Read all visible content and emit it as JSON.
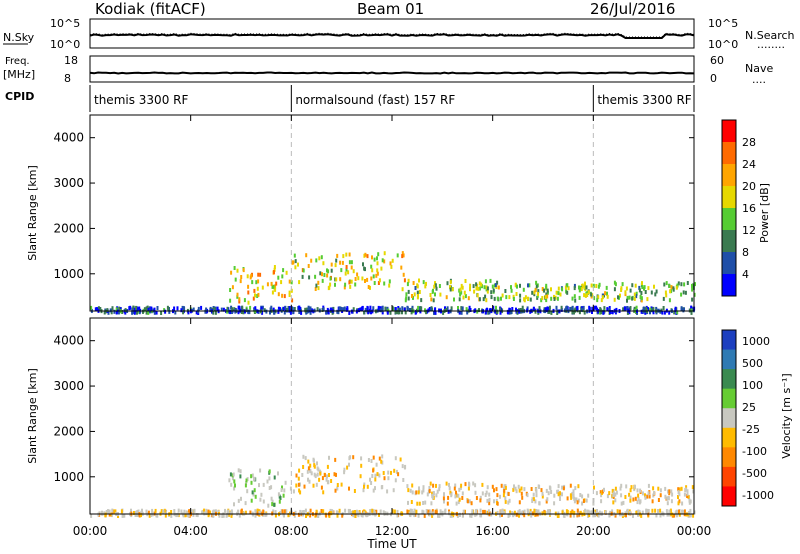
{
  "header": {
    "station": "Kodiak (fitACF)",
    "beam": "Beam 01",
    "date": "26/Jul/2016"
  },
  "nsky_panel": {
    "left_label": "N.Sky",
    "left_ticks": [
      "10^5",
      "10^0"
    ],
    "right_ticks": [
      "10^5",
      "10^0"
    ],
    "right_label": "N.Search",
    "right_legend_marker": "........"
  },
  "freq_panel": {
    "left_label_top": "Freq.",
    "left_label_bottom": "[MHz]",
    "left_ticks": [
      "18",
      "8"
    ],
    "right_ticks": [
      "60",
      "0"
    ],
    "right_label": "Nave",
    "right_legend_marker": "....",
    "cpid_label": "CPID"
  },
  "cpid_segments": [
    {
      "label": "themis 3300 RF",
      "start_hour": 0,
      "end_hour": 8
    },
    {
      "label": "normalsound (fast) 157 RF",
      "start_hour": 8,
      "end_hour": 20
    },
    {
      "label": "themis 3300 RF",
      "start_hour": 20,
      "end_hour": 24
    }
  ],
  "x_axis": {
    "label": "Time UT",
    "ticks": [
      "00:00",
      "04:00",
      "08:00",
      "12:00",
      "16:00",
      "20:00",
      "00:00"
    ],
    "range_hours": [
      0,
      24
    ]
  },
  "power_panel": {
    "ylabel": "Slant Range [km]",
    "yticks": [
      "1000",
      "2000",
      "3000",
      "4000"
    ],
    "colorbar_label": "Power [dB]",
    "colorbar_ticks": [
      "4",
      "8",
      "12",
      "16",
      "20",
      "24",
      "28"
    ],
    "colors": [
      "#0000ff",
      "#1f4fa8",
      "#3a7a50",
      "#55cc33",
      "#e6d800",
      "#ffa500",
      "#ff6a00",
      "#ff0000"
    ]
  },
  "velocity_panel": {
    "ylabel": "Slant Range [km]",
    "yticks": [
      "1000",
      "2000",
      "3000",
      "4000"
    ],
    "colorbar_label": "Velocity [m s⁻¹]",
    "colorbar_ticks": [
      "1000",
      "500",
      "100",
      "25",
      "-25",
      "-100",
      "-500",
      "-1000"
    ],
    "colors": [
      "#1c3fbf",
      "#2f7ab3",
      "#3a8a50",
      "#66cc33",
      "#c8c8c0",
      "#ffbb00",
      "#ff8800",
      "#ff4400",
      "#ff0000"
    ]
  },
  "chart_data": {
    "type": "heatmap",
    "x_unit": "hours UT",
    "y_unit": "km",
    "ylim": [
      180,
      4500
    ],
    "xlim": [
      0,
      24
    ],
    "echo_regions": [
      {
        "x_start": 5.5,
        "x_end": 8.0,
        "range_low": 400,
        "range_high": 1200,
        "power_db": 20,
        "velocity": 100
      },
      {
        "x_start": 8.0,
        "x_end": 12.5,
        "range_low": 700,
        "range_high": 1500,
        "power_db": 18,
        "velocity": -100
      },
      {
        "x_start": 12.5,
        "x_end": 16.0,
        "range_low": 450,
        "range_high": 900,
        "power_db": 14,
        "velocity": 0
      },
      {
        "x_start": 16.0,
        "x_end": 24.0,
        "range_low": 450,
        "range_high": 850,
        "power_db": 14,
        "velocity": 0
      },
      {
        "x_start": 0.0,
        "x_end": 24.0,
        "range_low": 180,
        "range_high": 300,
        "power_db": 6,
        "velocity": 0
      }
    ]
  }
}
